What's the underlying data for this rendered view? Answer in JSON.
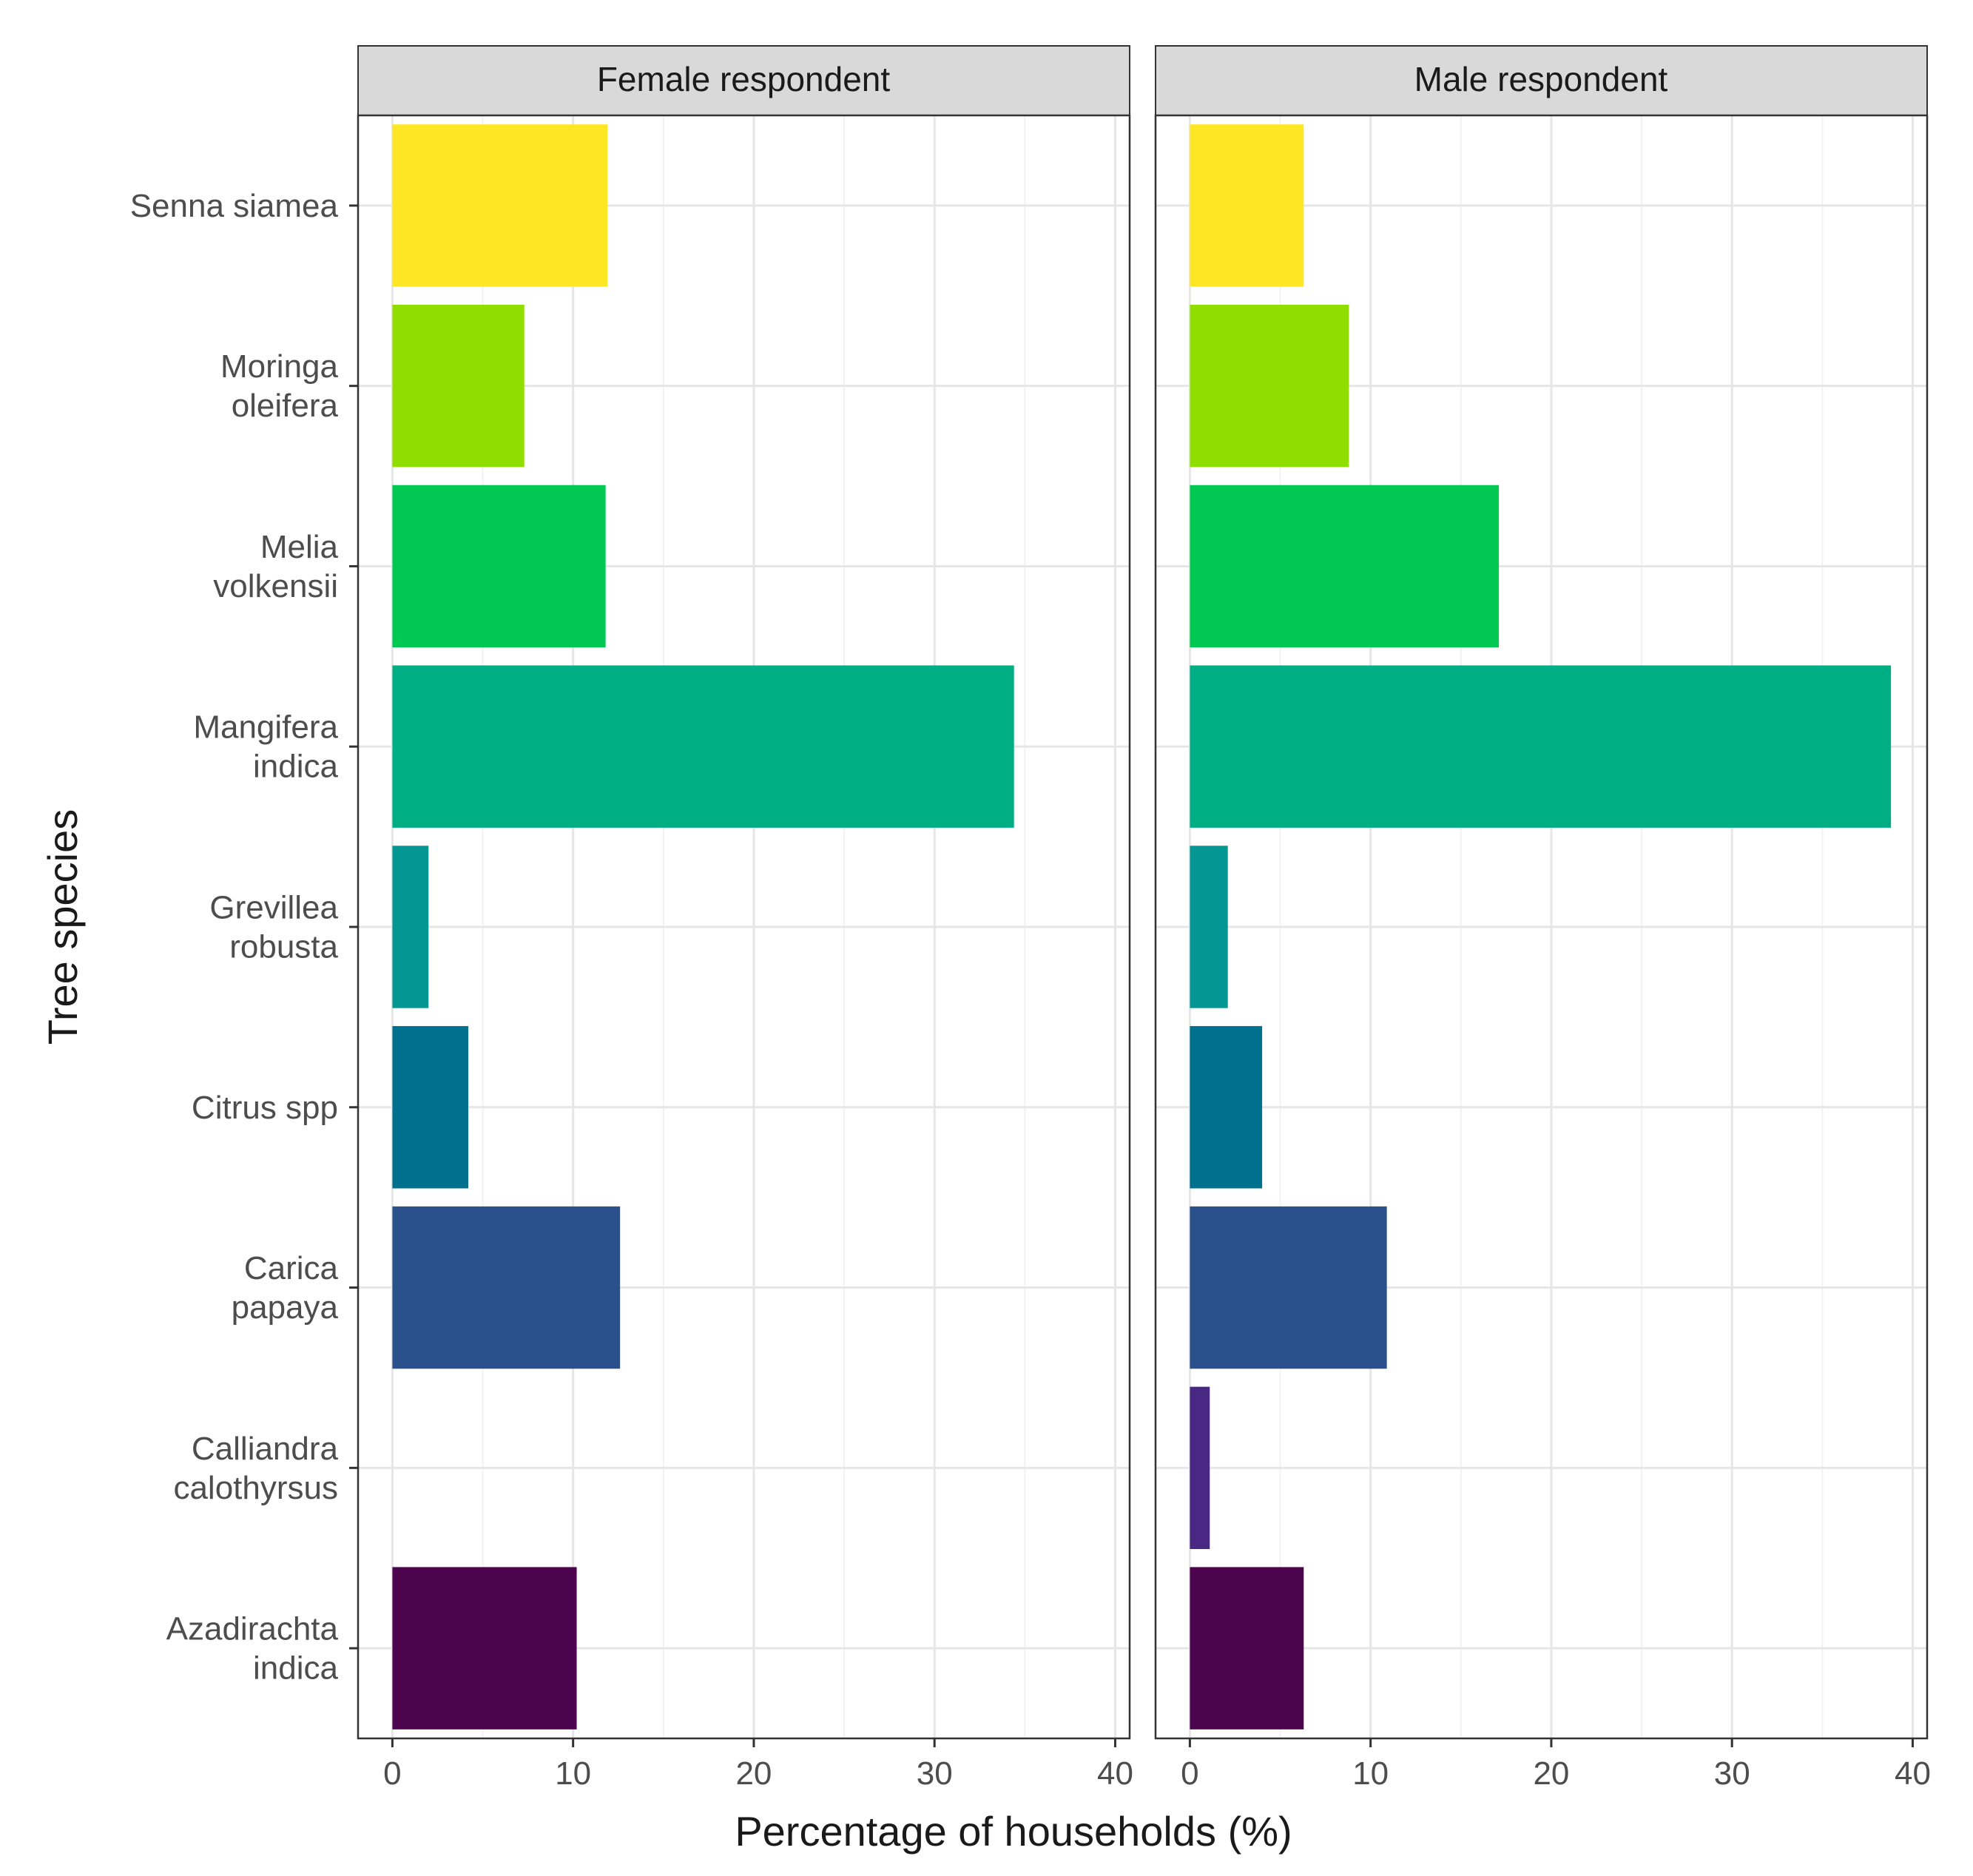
{
  "chart_data": {
    "type": "bar",
    "orientation": "horizontal",
    "facets": [
      "Female respondent",
      "Male respondent"
    ],
    "categories": [
      "Senna siamea",
      "Moringa oleifera",
      "Melia volkensii",
      "Mangifera indica",
      "Grevillea robusta",
      "Citrus spp",
      "Carica papaya",
      "Calliandra calothyrsus",
      "Azadirachta indica"
    ],
    "category_lines": [
      [
        "Senna siamea"
      ],
      [
        "Moringa",
        "oleifera"
      ],
      [
        "Melia",
        "volkensii"
      ],
      [
        "Mangifera",
        "indica"
      ],
      [
        "Grevillea",
        "robusta"
      ],
      [
        "Citrus spp"
      ],
      [
        "Carica",
        "papaya"
      ],
      [
        "Calliandra",
        "calothyrsus"
      ],
      [
        "Azadirachta",
        "indica"
      ]
    ],
    "series": [
      {
        "name": "Female respondent",
        "values": [
          11.9,
          7.3,
          11.8,
          34.4,
          2.0,
          4.2,
          12.6,
          0,
          10.2
        ]
      },
      {
        "name": "Male respondent",
        "values": [
          6.3,
          8.8,
          17.1,
          38.8,
          2.1,
          4.0,
          10.9,
          1.1,
          6.3
        ]
      }
    ],
    "colors": [
      "#FDE725",
      "#90DE00",
      "#00C853",
      "#00AE83",
      "#039692",
      "#00708F",
      "#2A518C",
      "#482882",
      "#4B044D"
    ],
    "xlabel": "Percentage of households (%)",
    "ylabel": "Tree species",
    "xlim": [
      -1.9,
      40.8
    ],
    "xticks": [
      0,
      10,
      20,
      30,
      40
    ],
    "grid": true
  }
}
